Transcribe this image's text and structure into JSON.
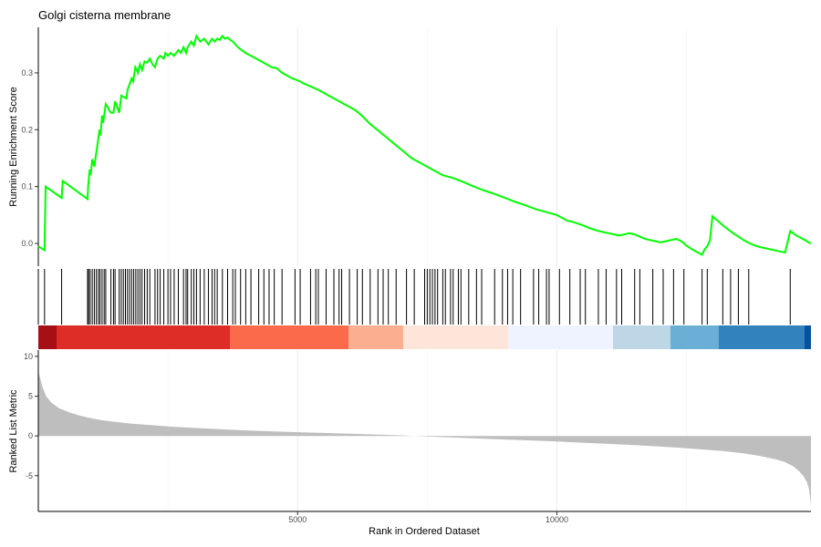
{
  "chart_data": {
    "type": "line",
    "title": "Golgi cisterna membrane",
    "xlabel": "Rank in Ordered Dataset",
    "x_ticks": [
      5000,
      10000
    ],
    "xlim": [
      0,
      14900
    ],
    "panels": {
      "enrichment": {
        "ylabel": "Running Enrichment Score",
        "ylim": [
          -0.04,
          0.38
        ],
        "y_ticks": [
          0.0,
          0.1,
          0.2,
          0.3
        ],
        "line_color": "#00ff00",
        "series": {
          "x": [
            0,
            120,
            140,
            450,
            470,
            950,
            960,
            990,
            1010,
            1040,
            1080,
            1110,
            1150,
            1180,
            1200,
            1230,
            1250,
            1300,
            1340,
            1360,
            1400,
            1450,
            1480,
            1560,
            1600,
            1700,
            1720,
            1760,
            1800,
            1830,
            1870,
            1900,
            1920,
            1960,
            2000,
            2050,
            2100,
            2150,
            2200,
            2250,
            2300,
            2350,
            2420,
            2450,
            2500,
            2550,
            2620,
            2700,
            2750,
            2800,
            2850,
            2880,
            2950,
            3000,
            3050,
            3120,
            3200,
            3280,
            3350,
            3400,
            3450,
            3500,
            3550,
            3600,
            3650,
            3700,
            3750,
            3800,
            3850,
            3920,
            4000,
            4100,
            4200,
            4300,
            4400,
            4500,
            4600,
            4700,
            4800,
            4900,
            5000,
            5100,
            5200,
            5300,
            5400,
            5500,
            5600,
            5700,
            5800,
            5900,
            6000,
            6100,
            6200,
            6400,
            6600,
            6800,
            7000,
            7200,
            7400,
            7600,
            7800,
            8000,
            8200,
            8400,
            8600,
            8800,
            9000,
            9200,
            9400,
            9600,
            9800,
            10000,
            10100,
            10200,
            10300,
            10400,
            10500,
            10600,
            10700,
            10800,
            10900,
            11000,
            11100,
            11200,
            11300,
            11400,
            11500,
            11600,
            11700,
            11800,
            11900,
            12000,
            12100,
            12200,
            12300,
            12400,
            12500,
            12600,
            12700,
            12800,
            12850,
            12900,
            12950,
            13000,
            13100,
            13200,
            13300,
            13400,
            13500,
            13600,
            13700,
            13800,
            13900,
            14000,
            14100,
            14200,
            14300,
            14400,
            14500,
            14600,
            14700,
            14800,
            14850,
            14900
          ],
          "y": [
            -0.005,
            -0.012,
            0.1,
            0.08,
            0.11,
            0.078,
            0.1,
            0.13,
            0.12,
            0.148,
            0.135,
            0.155,
            0.18,
            0.2,
            0.19,
            0.225,
            0.212,
            0.245,
            0.24,
            0.235,
            0.23,
            0.23,
            0.25,
            0.23,
            0.26,
            0.255,
            0.27,
            0.28,
            0.29,
            0.285,
            0.31,
            0.305,
            0.3,
            0.315,
            0.305,
            0.32,
            0.318,
            0.325,
            0.315,
            0.31,
            0.325,
            0.33,
            0.325,
            0.335,
            0.33,
            0.335,
            0.33,
            0.34,
            0.335,
            0.345,
            0.335,
            0.345,
            0.355,
            0.348,
            0.365,
            0.355,
            0.36,
            0.35,
            0.36,
            0.355,
            0.36,
            0.358,
            0.365,
            0.36,
            0.362,
            0.358,
            0.355,
            0.35,
            0.345,
            0.34,
            0.335,
            0.33,
            0.325,
            0.32,
            0.315,
            0.31,
            0.308,
            0.3,
            0.295,
            0.29,
            0.287,
            0.282,
            0.278,
            0.274,
            0.27,
            0.265,
            0.26,
            0.255,
            0.25,
            0.245,
            0.24,
            0.235,
            0.228,
            0.21,
            0.195,
            0.18,
            0.165,
            0.15,
            0.14,
            0.13,
            0.12,
            0.115,
            0.108,
            0.1,
            0.093,
            0.087,
            0.08,
            0.073,
            0.067,
            0.06,
            0.055,
            0.05,
            0.045,
            0.04,
            0.038,
            0.035,
            0.032,
            0.028,
            0.025,
            0.022,
            0.02,
            0.018,
            0.016,
            0.014,
            0.016,
            0.018,
            0.016,
            0.012,
            0.008,
            0.006,
            0.004,
            0.002,
            0.004,
            0.006,
            0.008,
            0.004,
            -0.004,
            -0.01,
            -0.015,
            -0.02,
            -0.01,
            -0.005,
            0.005,
            0.048,
            0.04,
            0.032,
            0.025,
            0.018,
            0.012,
            0.006,
            0.001,
            -0.003,
            -0.006,
            -0.008,
            -0.01,
            -0.012,
            -0.014,
            -0.016,
            0.022,
            0.015,
            0.01,
            0.005,
            0.002,
            0.0
          ]
        }
      },
      "hits": {
        "x": [
          120,
          450,
          950,
          970,
          1000,
          1040,
          1080,
          1120,
          1160,
          1190,
          1230,
          1270,
          1300,
          1400,
          1450,
          1480,
          1560,
          1600,
          1640,
          1680,
          1720,
          1760,
          1800,
          1840,
          1880,
          1920,
          1960,
          2000,
          2050,
          2100,
          2150,
          2250,
          2300,
          2350,
          2420,
          2500,
          2550,
          2620,
          2700,
          2800,
          2850,
          2880,
          2950,
          3000,
          3050,
          3120,
          3200,
          3280,
          3350,
          3400,
          3450,
          3550,
          3650,
          3750,
          3800,
          3900,
          4000,
          4100,
          4250,
          4350,
          4450,
          4550,
          4700,
          4950,
          5050,
          5250,
          5350,
          5400,
          5550,
          5700,
          5800,
          5850,
          6000,
          6150,
          6250,
          6400,
          6550,
          6650,
          6750,
          6900,
          7100,
          7250,
          7450,
          7500,
          7550,
          7600,
          7650,
          7700,
          7800,
          7850,
          7950,
          8000,
          8100,
          8150,
          8300,
          8450,
          8550,
          8800,
          8950,
          9050,
          9150,
          9300,
          9550,
          9650,
          9800,
          9850,
          10050,
          10250,
          10450,
          10550,
          10800,
          10950,
          11150,
          11250,
          11500,
          11600,
          11850,
          12050,
          12250,
          12450,
          12800,
          12900,
          13200,
          13350,
          13500,
          13700,
          14500
        ]
      },
      "ranked": {
        "ylabel": "Ranked List Metric",
        "ylim": [
          -9.5,
          10.8
        ],
        "y_ticks": [
          10,
          5,
          0,
          -5
        ],
        "fill_color": "#bebebe",
        "zero_cross": 7250,
        "series": {
          "x": [
            0,
            30,
            80,
            150,
            250,
            400,
            600,
            800,
            1000,
            1200,
            1500,
            1800,
            2200,
            2600,
            3000,
            3500,
            4000,
            4500,
            5000,
            5500,
            6000,
            6500,
            7000,
            7250,
            7500,
            8000,
            8500,
            9000,
            9500,
            10000,
            10500,
            11000,
            11500,
            12000,
            12400,
            12800,
            13200,
            13600,
            13900,
            14200,
            14400,
            14550,
            14650,
            14750,
            14820,
            14860,
            14880,
            14900
          ],
          "y": [
            8.2,
            7.4,
            6.2,
            5.0,
            4.2,
            3.5,
            2.95,
            2.55,
            2.25,
            2.0,
            1.75,
            1.55,
            1.35,
            1.15,
            1.0,
            0.85,
            0.7,
            0.58,
            0.47,
            0.37,
            0.27,
            0.18,
            0.08,
            0.0,
            -0.08,
            -0.2,
            -0.32,
            -0.45,
            -0.57,
            -0.7,
            -0.85,
            -1.0,
            -1.15,
            -1.35,
            -1.5,
            -1.7,
            -1.9,
            -2.2,
            -2.5,
            -2.9,
            -3.3,
            -3.8,
            -4.3,
            -5.0,
            -5.8,
            -6.6,
            -7.6,
            -8.8
          ]
        }
      }
    }
  }
}
